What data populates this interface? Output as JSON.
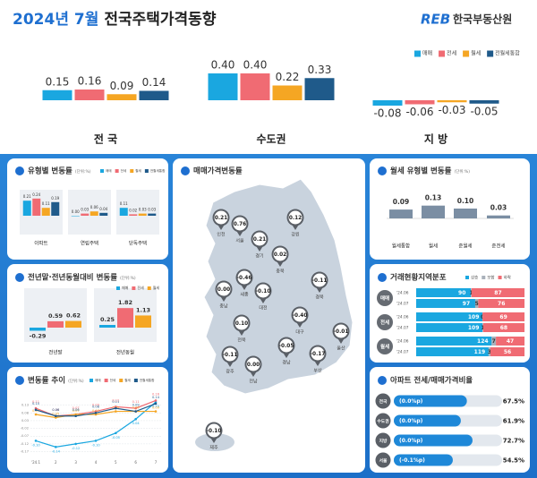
{
  "header": {
    "title_date": "2024년 7월",
    "title_main": "전국주택가격동향",
    "logo_mark": "REB",
    "logo_text": "한국부동산원"
  },
  "chart_data": [
    {
      "type": "bar",
      "legend": "top-right",
      "categories": [
        "전 국",
        "수도권",
        "지 방"
      ],
      "series": [
        {
          "name": "매매",
          "color": "#1aa7e0",
          "values": [
            0.15,
            0.4,
            -0.08
          ],
          "value_labels": [
            "0.15",
            "0.40",
            "-0.08"
          ]
        },
        {
          "name": "전세",
          "color": "#f06b73",
          "values": [
            0.16,
            0.4,
            -0.06
          ],
          "value_labels": [
            "0.16",
            "0.40",
            "-0.06"
          ]
        },
        {
          "name": "월세",
          "color": "#f5a623",
          "values": [
            0.09,
            0.22,
            -0.03
          ],
          "value_labels": [
            "0.09",
            "0.22",
            "-0.03"
          ]
        },
        {
          "name": "전월세통합",
          "color": "#1f5a8a",
          "values": [
            0.14,
            0.33,
            -0.05
          ],
          "value_labels": [
            "0.14",
            "0.33",
            "-0.05"
          ]
        }
      ]
    },
    {
      "type": "bar",
      "title": "유형별 변동률",
      "unit": "(단위:%)",
      "legend": "top-right",
      "categories": [
        "아파트",
        "연립주택",
        "단독주택"
      ],
      "series": [
        {
          "name": "매매",
          "color": "#1aa7e0",
          "values": [
            0.21,
            0.0,
            0.11
          ],
          "value_labels": [
            "0.21",
            "0.00",
            "0.11"
          ]
        },
        {
          "name": "전세",
          "color": "#f06b73",
          "values": [
            0.24,
            0.03,
            0.02
          ],
          "value_labels": [
            "0.24",
            "0.03",
            "0.02"
          ]
        },
        {
          "name": "월세",
          "color": "#f5a623",
          "values": [
            0.11,
            0.06,
            0.03
          ],
          "value_labels": [
            "0.11",
            "0.06",
            "0.03"
          ]
        },
        {
          "name": "전월세통합",
          "color": "#1f5a8a",
          "values": [
            0.19,
            0.04,
            0.03
          ],
          "value_labels": [
            "0.19",
            "0.04",
            "0.03"
          ]
        }
      ]
    },
    {
      "type": "bar",
      "title": "전년말·전년동월대비 변동률",
      "unit": "(단위:%)",
      "legend": "top-right",
      "categories": [
        "전년말",
        "전년동월"
      ],
      "series": [
        {
          "name": "매매",
          "color": "#1aa7e0",
          "values": [
            -0.29,
            0.25
          ],
          "value_labels": [
            "-0.29",
            "0.25"
          ]
        },
        {
          "name": "전세",
          "color": "#f06b73",
          "values": [
            0.59,
            1.82
          ],
          "value_labels": [
            "0.59",
            "1.82"
          ]
        },
        {
          "name": "월세",
          "color": "#f5a623",
          "values": [
            0.62,
            1.13
          ],
          "value_labels": [
            "0.62",
            "1.13"
          ]
        }
      ]
    },
    {
      "type": "line",
      "title": "변동률 추이",
      "unit": "(단위:%)",
      "legend": "top-right",
      "categories": [
        "'24.1",
        "2",
        "3",
        "4",
        "5",
        "6",
        "7"
      ],
      "ylim": [
        -0.19,
        0.18
      ],
      "yticks": [
        0.13,
        0.08,
        0.03,
        -0.02,
        -0.07,
        -0.12,
        -0.17
      ],
      "grid": true,
      "series": [
        {
          "name": "매매",
          "color": "#1aa7e0",
          "values": [
            -0.1,
            -0.14,
            -0.12,
            -0.1,
            -0.05,
            0.04,
            0.15
          ],
          "value_labels": [
            "-0.10",
            "-0.14",
            "-0.12",
            "-0.10",
            "-0.05",
            "0.04",
            "0.15"
          ]
        },
        {
          "name": "전세",
          "color": "#f06b73",
          "values": [
            0.11,
            0.06,
            0.07,
            0.09,
            0.12,
            0.11,
            0.16
          ],
          "value_labels": [
            "0.11",
            "0.06",
            "0.07",
            "0.09",
            "0.12",
            "0.11",
            "0.16"
          ]
        },
        {
          "name": "월세",
          "color": "#f5a623",
          "values": [
            0.07,
            0.05,
            0.07,
            0.07,
            0.09,
            0.09,
            0.09
          ],
          "value_labels": [
            "0.07",
            "0.05",
            "0.07",
            "0.07",
            "0.09",
            "0.09",
            "0.09"
          ]
        },
        {
          "name": "전월세통합",
          "color": "#1f5a8a",
          "values": [
            0.1,
            0.06,
            0.06,
            0.08,
            0.11,
            0.09,
            0.14
          ],
          "value_labels": [
            "0.10",
            "0.06",
            "0.06",
            "0.08",
            "0.11",
            "0.09",
            "0.14"
          ]
        }
      ]
    },
    {
      "type": "map",
      "title": "매매가격변동률",
      "categories": [
        "인천",
        "서울",
        "경기",
        "강원",
        "충북",
        "세종",
        "충남",
        "대전",
        "경북",
        "전북",
        "대구",
        "울산",
        "광주",
        "전남",
        "경남",
        "부산",
        "제주"
      ],
      "values": [
        0.21,
        0.76,
        0.21,
        0.12,
        0.02,
        -0.46,
        0.0,
        -0.1,
        -0.11,
        0.1,
        -0.4,
        -0.01,
        -0.11,
        0.0,
        -0.05,
        -0.17,
        -0.1
      ],
      "value_labels": [
        "0.21",
        "0.76",
        "0.21",
        "0.12",
        "0.02",
        "-0.46",
        "0.00",
        "-0.10",
        "-0.11",
        "0.10",
        "-0.40",
        "-0.01",
        "-0.11",
        "0.00",
        "-0.05",
        "-0.17",
        "-0.10"
      ],
      "color": "#5a5f66"
    },
    {
      "type": "bar",
      "title": "월세 유형별 변동률",
      "unit": "(단위:%)",
      "categories": [
        "월세통합",
        "월세",
        "준월세",
        "준전세"
      ],
      "values": [
        0.09,
        0.13,
        0.1,
        0.03
      ],
      "value_labels": [
        "0.09",
        "0.13",
        "0.10",
        "0.03"
      ],
      "color": "#7b8ea3"
    },
    {
      "type": "stacked-bar",
      "title": "거래현황지역분포",
      "legend": "top-right",
      "groups": [
        "매매",
        "전세",
        "월세"
      ],
      "categories": [
        "'24.06",
        "'24.07",
        "'24.06",
        "'24.07",
        "'24.06",
        "'24.07"
      ],
      "series": [
        {
          "name": "상승",
          "color": "#1aa7e0",
          "values": [
            90,
            97,
            109,
            109,
            124,
            119
          ]
        },
        {
          "name": "보합",
          "color": "#a9b1ba",
          "values": [
            1,
            5,
            0,
            1,
            7,
            3
          ]
        },
        {
          "name": "하락",
          "color": "#f06b73",
          "values": [
            87,
            76,
            69,
            68,
            47,
            56
          ]
        }
      ]
    },
    {
      "type": "progress",
      "title": "아파트 전세/매매가격비율",
      "categories": [
        "전국",
        "수도권",
        "지방",
        "서울"
      ],
      "values": [
        67.5,
        61.9,
        72.7,
        54.5
      ],
      "value_labels": [
        "67.5%",
        "61.9%",
        "72.7%",
        "54.5%"
      ],
      "change_labels": [
        "(0.0%p)",
        "(0.0%p)",
        "(0.0%p)",
        "(-0.1%p)"
      ],
      "xlim": [
        0,
        100
      ],
      "color": "#1e88d8"
    }
  ]
}
